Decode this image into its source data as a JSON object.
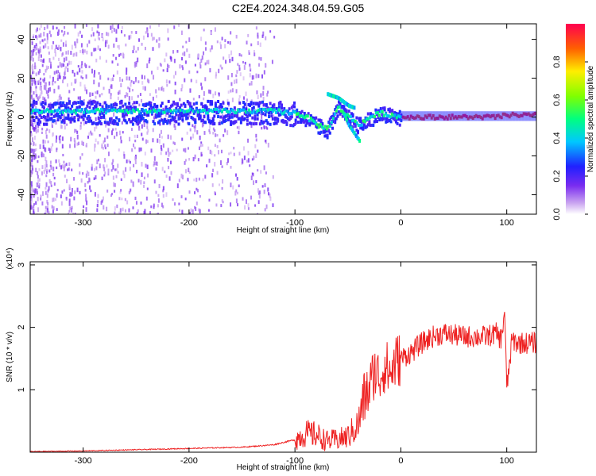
{
  "title": "C2E4.2024.348.04.59.G05",
  "colors": {
    "snr_line": "#ee2222",
    "ridge": "#6a1fff",
    "axes": "#000000"
  },
  "chart_data": [
    {
      "type": "heatmap",
      "xlabel": "Height of straight line (km)",
      "ylabel": "Frequency (Hz)",
      "xlim": [
        -350,
        128
      ],
      "ylim": [
        -50,
        48
      ],
      "xticks": [
        -300,
        -200,
        -100,
        0,
        100
      ],
      "yticks": [
        -40,
        -20,
        0,
        20,
        40
      ],
      "colorbar": {
        "label": "Normalized spectral amplitude",
        "range": [
          0,
          1
        ],
        "ticks": [
          0.0,
          0.2,
          0.4,
          0.6,
          0.8
        ],
        "colormap": "rainbow (purple → blue → cyan → green → yellow → red)"
      },
      "ridge": {
        "description": "main spectral ridge frequency vs height",
        "x": [
          -350,
          -300,
          -250,
          -200,
          -150,
          -120,
          -100,
          -90,
          -80,
          -70,
          -60,
          -50,
          -40,
          -30,
          -20,
          -10,
          0,
          50,
          90,
          100,
          128
        ],
        "y": [
          3,
          3,
          3,
          3,
          3,
          3,
          2,
          0,
          -4,
          -6,
          5,
          0,
          -4,
          0,
          2,
          1,
          0,
          0,
          0,
          1,
          1
        ]
      },
      "branches": [
        {
          "x": [
            -70,
            -60,
            -50,
            -45
          ],
          "y": [
            12,
            10,
            6,
            5
          ]
        },
        {
          "x": [
            -55,
            -50,
            -45,
            -40
          ],
          "y": [
            2,
            -4,
            -8,
            -12
          ]
        }
      ]
    },
    {
      "type": "line",
      "xlabel": "Height of straight line (km)",
      "ylabel": "SNR (10 * v/v)",
      "y_multiplier": "(x10⁴)",
      "xlim": [
        -350,
        128
      ],
      "ylim": [
        0,
        3.05
      ],
      "xticks": [
        -300,
        -200,
        -100,
        0,
        100
      ],
      "yticks": [
        1,
        2,
        3
      ],
      "series": [
        {
          "x": [
            -350,
            -300,
            -250,
            -200,
            -150,
            -120,
            -100,
            -90,
            -80,
            -70,
            -60,
            -50,
            -40,
            -35,
            -30,
            -25,
            -20,
            -15,
            -10,
            -5,
            0,
            10,
            20,
            30,
            40,
            60,
            80,
            90,
            95,
            98,
            100,
            105,
            110,
            120,
            128
          ],
          "y": [
            0.01,
            0.02,
            0.04,
            0.06,
            0.08,
            0.12,
            0.2,
            0.3,
            0.28,
            0.18,
            0.2,
            0.25,
            0.45,
            0.85,
            1.0,
            1.3,
            1.2,
            1.4,
            1.25,
            1.45,
            1.5,
            1.6,
            1.75,
            1.85,
            1.9,
            1.85,
            1.85,
            1.9,
            1.8,
            2.3,
            1.0,
            1.8,
            1.75,
            1.75,
            1.75
          ]
        }
      ]
    }
  ]
}
